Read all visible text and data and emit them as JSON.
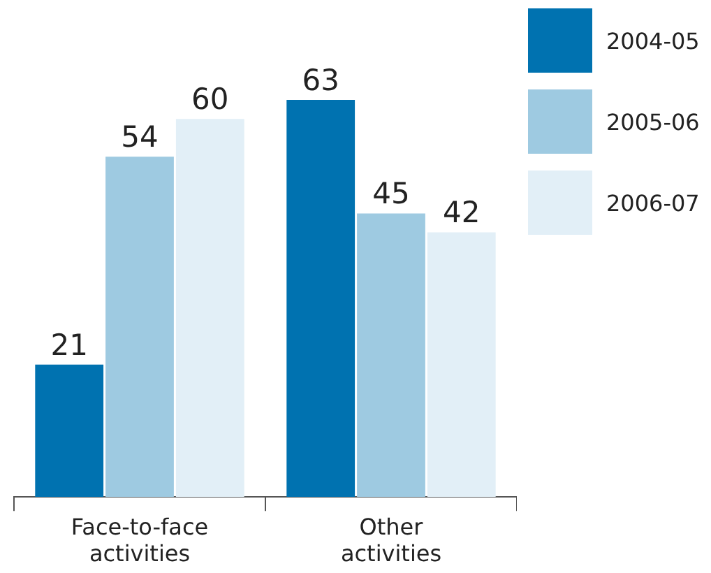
{
  "chart_data": {
    "type": "bar",
    "categories": [
      "Face-to-face activities",
      "Other activities"
    ],
    "series": [
      {
        "name": "2004-05",
        "color": "#0072b0",
        "values": [
          21,
          63
        ]
      },
      {
        "name": "2005-06",
        "color": "#9ecae1",
        "values": [
          54,
          45
        ]
      },
      {
        "name": "2006-07",
        "color": "#e2eff7",
        "values": [
          60,
          42
        ]
      }
    ],
    "data_labels": true,
    "legend": "top right",
    "grid": false
  }
}
